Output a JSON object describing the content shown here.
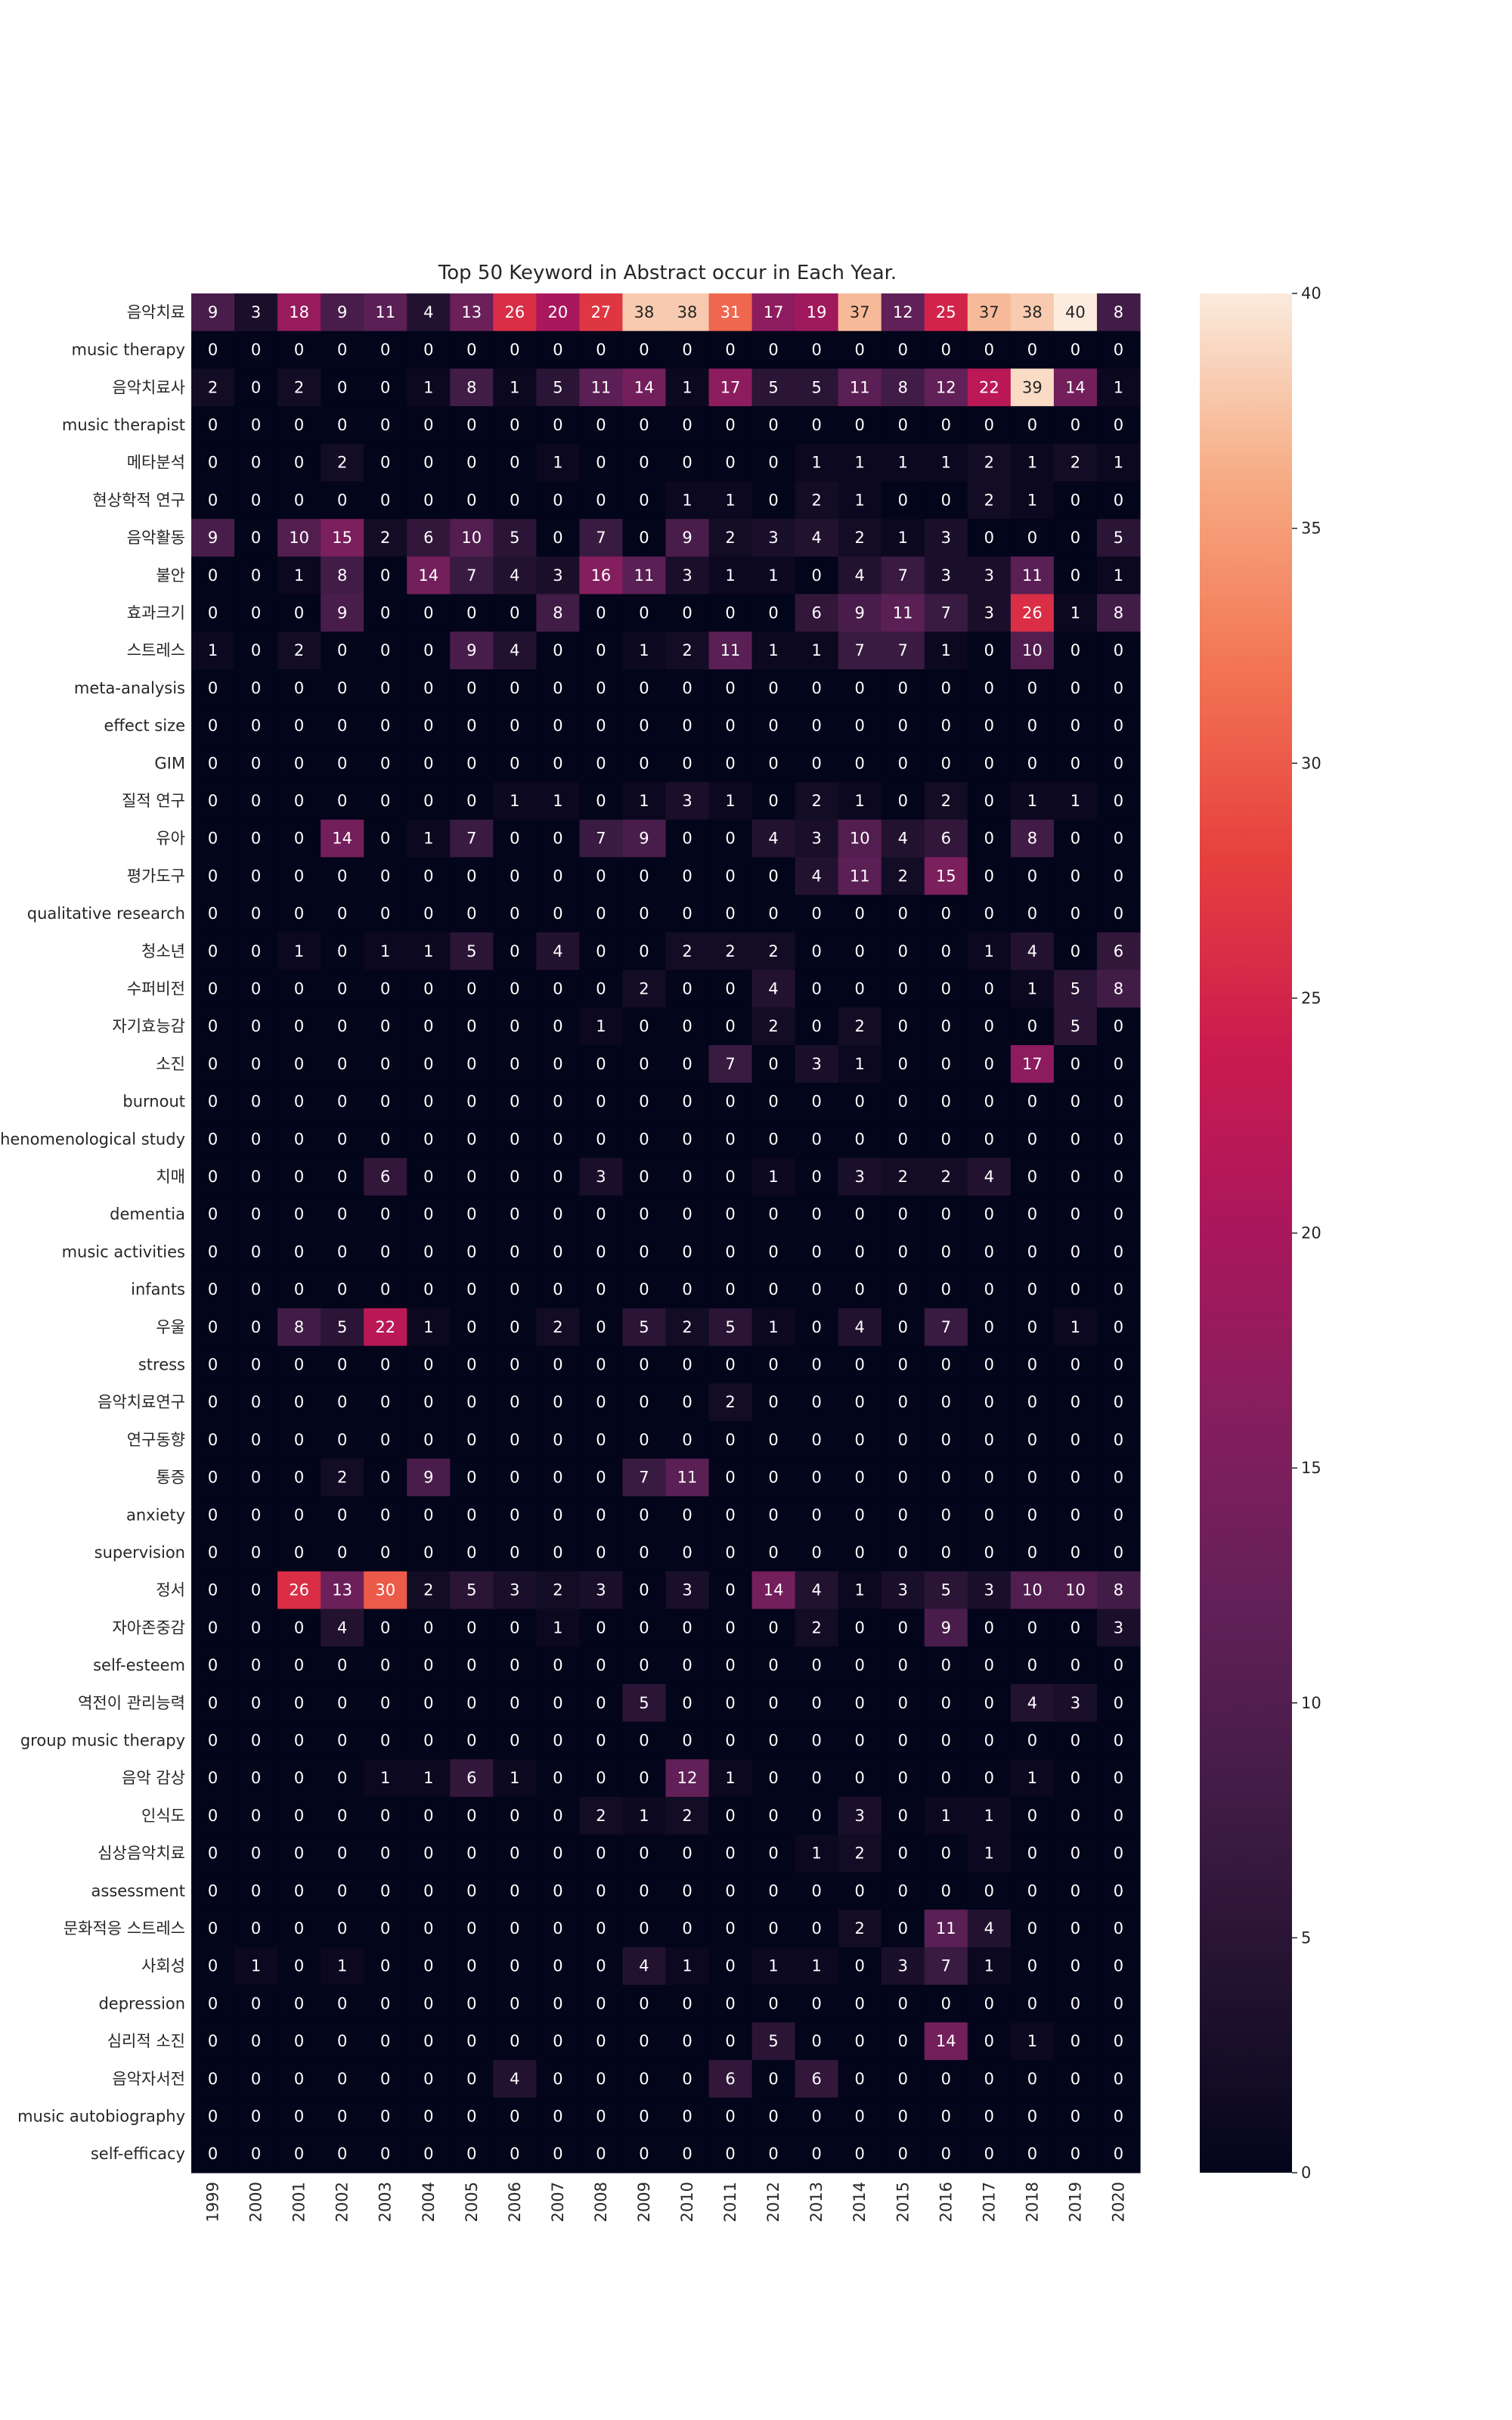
{
  "chart_data": {
    "type": "heatmap",
    "title": "Top 50 Keyword in Abstract occur in Each Year.",
    "xlabel": "",
    "ylabel": "",
    "x": [
      "1999",
      "2000",
      "2001",
      "2002",
      "2003",
      "2004",
      "2005",
      "2006",
      "2007",
      "2008",
      "2009",
      "2010",
      "2011",
      "2012",
      "2013",
      "2014",
      "2015",
      "2016",
      "2017",
      "2018",
      "2019",
      "2020"
    ],
    "y": [
      "음악치료",
      "music therapy",
      "음악치료사",
      "music therapist",
      "메타분석",
      "현상학적 연구",
      "음악활동",
      "불안",
      "효과크기",
      "스트레스",
      "meta-analysis",
      "effect size",
      "GIM",
      "질적 연구",
      "유아",
      "평가도구",
      "qualitative research",
      "청소년",
      "수퍼비전",
      "자기효능감",
      "소진",
      "burnout",
      "phenomenological study",
      "치매",
      "dementia",
      "music activities",
      "infants",
      "우울",
      "stress",
      "음악치료연구",
      "연구동향",
      "통증",
      "anxiety",
      "supervision",
      "정서",
      "자아존중감",
      "self-esteem",
      "역전이 관리능력",
      "group music therapy",
      "음악 감상",
      "인식도",
      "심상음악치료",
      "assessment",
      "문화적응 스트레스",
      "사회성",
      "depression",
      "심리적 소진",
      "음악자서전",
      "music autobiography",
      "self-efficacy"
    ],
    "values": [
      [
        9,
        3,
        18,
        9,
        11,
        4,
        13,
        26,
        20,
        27,
        38,
        38,
        31,
        17,
        19,
        37,
        12,
        25,
        37,
        38,
        40,
        8
      ],
      [
        0,
        0,
        0,
        0,
        0,
        0,
        0,
        0,
        0,
        0,
        0,
        0,
        0,
        0,
        0,
        0,
        0,
        0,
        0,
        0,
        0,
        0
      ],
      [
        2,
        0,
        2,
        0,
        0,
        1,
        8,
        1,
        5,
        11,
        14,
        1,
        17,
        5,
        5,
        11,
        8,
        12,
        22,
        39,
        14,
        1
      ],
      [
        0,
        0,
        0,
        0,
        0,
        0,
        0,
        0,
        0,
        0,
        0,
        0,
        0,
        0,
        0,
        0,
        0,
        0,
        0,
        0,
        0,
        0
      ],
      [
        0,
        0,
        0,
        2,
        0,
        0,
        0,
        0,
        1,
        0,
        0,
        0,
        0,
        0,
        1,
        1,
        1,
        1,
        2,
        1,
        2,
        1
      ],
      [
        0,
        0,
        0,
        0,
        0,
        0,
        0,
        0,
        0,
        0,
        0,
        1,
        1,
        0,
        2,
        1,
        0,
        0,
        2,
        1,
        0,
        0
      ],
      [
        9,
        0,
        10,
        15,
        2,
        6,
        10,
        5,
        0,
        7,
        0,
        9,
        2,
        3,
        4,
        2,
        1,
        3,
        0,
        0,
        0,
        5
      ],
      [
        0,
        0,
        1,
        8,
        0,
        14,
        7,
        4,
        3,
        16,
        11,
        3,
        1,
        1,
        0,
        4,
        7,
        3,
        3,
        11,
        0,
        1
      ],
      [
        0,
        0,
        0,
        9,
        0,
        0,
        0,
        0,
        8,
        0,
        0,
        0,
        0,
        0,
        6,
        9,
        11,
        7,
        3,
        26,
        1,
        8
      ],
      [
        1,
        0,
        2,
        0,
        0,
        0,
        9,
        4,
        0,
        0,
        1,
        2,
        11,
        1,
        1,
        7,
        7,
        1,
        0,
        10,
        0,
        0
      ],
      [
        0,
        0,
        0,
        0,
        0,
        0,
        0,
        0,
        0,
        0,
        0,
        0,
        0,
        0,
        0,
        0,
        0,
        0,
        0,
        0,
        0,
        0
      ],
      [
        0,
        0,
        0,
        0,
        0,
        0,
        0,
        0,
        0,
        0,
        0,
        0,
        0,
        0,
        0,
        0,
        0,
        0,
        0,
        0,
        0,
        0
      ],
      [
        0,
        0,
        0,
        0,
        0,
        0,
        0,
        0,
        0,
        0,
        0,
        0,
        0,
        0,
        0,
        0,
        0,
        0,
        0,
        0,
        0,
        0
      ],
      [
        0,
        0,
        0,
        0,
        0,
        0,
        0,
        1,
        1,
        0,
        1,
        3,
        1,
        0,
        2,
        1,
        0,
        2,
        0,
        1,
        1,
        0
      ],
      [
        0,
        0,
        0,
        14,
        0,
        1,
        7,
        0,
        0,
        7,
        9,
        0,
        0,
        4,
        3,
        10,
        4,
        6,
        0,
        8,
        0,
        0
      ],
      [
        0,
        0,
        0,
        0,
        0,
        0,
        0,
        0,
        0,
        0,
        0,
        0,
        0,
        0,
        4,
        11,
        2,
        15,
        0,
        0,
        0,
        0
      ],
      [
        0,
        0,
        0,
        0,
        0,
        0,
        0,
        0,
        0,
        0,
        0,
        0,
        0,
        0,
        0,
        0,
        0,
        0,
        0,
        0,
        0,
        0
      ],
      [
        0,
        0,
        1,
        0,
        1,
        1,
        5,
        0,
        4,
        0,
        0,
        2,
        2,
        2,
        0,
        0,
        0,
        0,
        1,
        4,
        0,
        6
      ],
      [
        0,
        0,
        0,
        0,
        0,
        0,
        0,
        0,
        0,
        0,
        2,
        0,
        0,
        4,
        0,
        0,
        0,
        0,
        0,
        1,
        5,
        8
      ],
      [
        0,
        0,
        0,
        0,
        0,
        0,
        0,
        0,
        0,
        1,
        0,
        0,
        0,
        2,
        0,
        2,
        0,
        0,
        0,
        0,
        5,
        0
      ],
      [
        0,
        0,
        0,
        0,
        0,
        0,
        0,
        0,
        0,
        0,
        0,
        0,
        7,
        0,
        3,
        1,
        0,
        0,
        0,
        17,
        0,
        0
      ],
      [
        0,
        0,
        0,
        0,
        0,
        0,
        0,
        0,
        0,
        0,
        0,
        0,
        0,
        0,
        0,
        0,
        0,
        0,
        0,
        0,
        0,
        0
      ],
      [
        0,
        0,
        0,
        0,
        0,
        0,
        0,
        0,
        0,
        0,
        0,
        0,
        0,
        0,
        0,
        0,
        0,
        0,
        0,
        0,
        0,
        0
      ],
      [
        0,
        0,
        0,
        0,
        6,
        0,
        0,
        0,
        0,
        3,
        0,
        0,
        0,
        1,
        0,
        3,
        2,
        2,
        4,
        0,
        0,
        0
      ],
      [
        0,
        0,
        0,
        0,
        0,
        0,
        0,
        0,
        0,
        0,
        0,
        0,
        0,
        0,
        0,
        0,
        0,
        0,
        0,
        0,
        0,
        0
      ],
      [
        0,
        0,
        0,
        0,
        0,
        0,
        0,
        0,
        0,
        0,
        0,
        0,
        0,
        0,
        0,
        0,
        0,
        0,
        0,
        0,
        0,
        0
      ],
      [
        0,
        0,
        0,
        0,
        0,
        0,
        0,
        0,
        0,
        0,
        0,
        0,
        0,
        0,
        0,
        0,
        0,
        0,
        0,
        0,
        0,
        0
      ],
      [
        0,
        0,
        8,
        5,
        22,
        1,
        0,
        0,
        2,
        0,
        5,
        2,
        5,
        1,
        0,
        4,
        0,
        7,
        0,
        0,
        1,
        0
      ],
      [
        0,
        0,
        0,
        0,
        0,
        0,
        0,
        0,
        0,
        0,
        0,
        0,
        0,
        0,
        0,
        0,
        0,
        0,
        0,
        0,
        0,
        0
      ],
      [
        0,
        0,
        0,
        0,
        0,
        0,
        0,
        0,
        0,
        0,
        0,
        0,
        2,
        0,
        0,
        0,
        0,
        0,
        0,
        0,
        0,
        0
      ],
      [
        0,
        0,
        0,
        0,
        0,
        0,
        0,
        0,
        0,
        0,
        0,
        0,
        0,
        0,
        0,
        0,
        0,
        0,
        0,
        0,
        0,
        0
      ],
      [
        0,
        0,
        0,
        2,
        0,
        9,
        0,
        0,
        0,
        0,
        7,
        11,
        0,
        0,
        0,
        0,
        0,
        0,
        0,
        0,
        0,
        0
      ],
      [
        0,
        0,
        0,
        0,
        0,
        0,
        0,
        0,
        0,
        0,
        0,
        0,
        0,
        0,
        0,
        0,
        0,
        0,
        0,
        0,
        0,
        0
      ],
      [
        0,
        0,
        0,
        0,
        0,
        0,
        0,
        0,
        0,
        0,
        0,
        0,
        0,
        0,
        0,
        0,
        0,
        0,
        0,
        0,
        0,
        0
      ],
      [
        0,
        0,
        26,
        13,
        30,
        2,
        5,
        3,
        2,
        3,
        0,
        3,
        0,
        14,
        4,
        1,
        3,
        5,
        3,
        10,
        10,
        8
      ],
      [
        0,
        0,
        0,
        4,
        0,
        0,
        0,
        0,
        1,
        0,
        0,
        0,
        0,
        0,
        2,
        0,
        0,
        9,
        0,
        0,
        0,
        3
      ],
      [
        0,
        0,
        0,
        0,
        0,
        0,
        0,
        0,
        0,
        0,
        0,
        0,
        0,
        0,
        0,
        0,
        0,
        0,
        0,
        0,
        0,
        0
      ],
      [
        0,
        0,
        0,
        0,
        0,
        0,
        0,
        0,
        0,
        0,
        5,
        0,
        0,
        0,
        0,
        0,
        0,
        0,
        0,
        4,
        3,
        0
      ],
      [
        0,
        0,
        0,
        0,
        0,
        0,
        0,
        0,
        0,
        0,
        0,
        0,
        0,
        0,
        0,
        0,
        0,
        0,
        0,
        0,
        0,
        0
      ],
      [
        0,
        0,
        0,
        0,
        1,
        1,
        6,
        1,
        0,
        0,
        0,
        12,
        1,
        0,
        0,
        0,
        0,
        0,
        0,
        1,
        0,
        0
      ],
      [
        0,
        0,
        0,
        0,
        0,
        0,
        0,
        0,
        0,
        2,
        1,
        2,
        0,
        0,
        0,
        3,
        0,
        1,
        1,
        0,
        0,
        0
      ],
      [
        0,
        0,
        0,
        0,
        0,
        0,
        0,
        0,
        0,
        0,
        0,
        0,
        0,
        0,
        1,
        2,
        0,
        0,
        1,
        0,
        0,
        0
      ],
      [
        0,
        0,
        0,
        0,
        0,
        0,
        0,
        0,
        0,
        0,
        0,
        0,
        0,
        0,
        0,
        0,
        0,
        0,
        0,
        0,
        0,
        0
      ],
      [
        0,
        0,
        0,
        0,
        0,
        0,
        0,
        0,
        0,
        0,
        0,
        0,
        0,
        0,
        0,
        2,
        0,
        11,
        4,
        0,
        0,
        0
      ],
      [
        0,
        1,
        0,
        1,
        0,
        0,
        0,
        0,
        0,
        0,
        4,
        1,
        0,
        1,
        1,
        0,
        3,
        7,
        1,
        0,
        0,
        0
      ],
      [
        0,
        0,
        0,
        0,
        0,
        0,
        0,
        0,
        0,
        0,
        0,
        0,
        0,
        0,
        0,
        0,
        0,
        0,
        0,
        0,
        0,
        0
      ],
      [
        0,
        0,
        0,
        0,
        0,
        0,
        0,
        0,
        0,
        0,
        0,
        0,
        0,
        5,
        0,
        0,
        0,
        14,
        0,
        1,
        0,
        0
      ],
      [
        0,
        0,
        0,
        0,
        0,
        0,
        0,
        4,
        0,
        0,
        0,
        0,
        6,
        0,
        6,
        0,
        0,
        0,
        0,
        0,
        0,
        0
      ],
      [
        0,
        0,
        0,
        0,
        0,
        0,
        0,
        0,
        0,
        0,
        0,
        0,
        0,
        0,
        0,
        0,
        0,
        0,
        0,
        0,
        0,
        0
      ],
      [
        0,
        0,
        0,
        0,
        0,
        0,
        0,
        0,
        0,
        0,
        0,
        0,
        0,
        0,
        0,
        0,
        0,
        0,
        0,
        0,
        0,
        0
      ]
    ],
    "colorbar": {
      "colormap": "rocket",
      "vmin": 0,
      "vmax": 40,
      "ticks": [
        "0",
        "5",
        "10",
        "15",
        "20",
        "25",
        "30",
        "35",
        "40"
      ]
    }
  }
}
